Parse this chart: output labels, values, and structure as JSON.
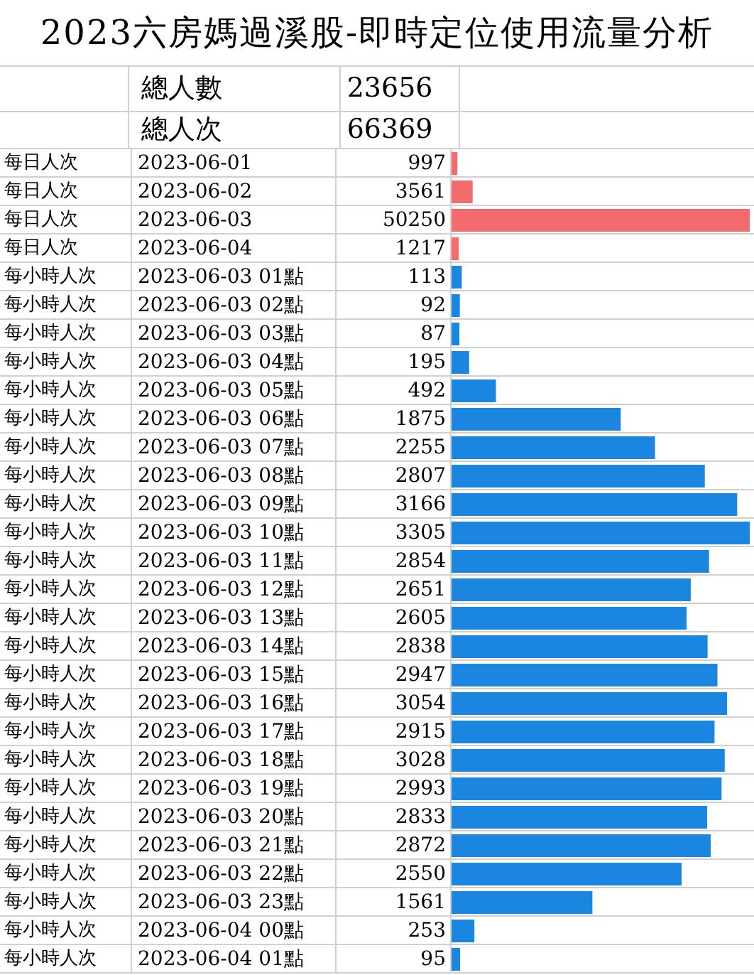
{
  "chart_data": [
    {
      "type": "bar",
      "orientation": "horizontal",
      "title": "2023六房媽過溪股-即時定位使用流量分析",
      "annotations": [
        "總人數",
        "23656",
        "總人次",
        "66369"
      ],
      "ylabel": "每日人次",
      "data_labels": true,
      "grid": true,
      "categories": [
        "2023-06-01",
        "2023-06-02",
        "2023-06-03",
        "2023-06-04"
      ],
      "series": [
        {
          "color": "#f26b6d",
          "values": [
            997,
            3561,
            50250,
            1217
          ]
        }
      ]
    },
    {
      "type": "bar",
      "orientation": "horizontal",
      "ylabel": "每小時人次",
      "data_labels": true,
      "grid": true,
      "categories": [
        "2023-06-03 01點",
        "2023-06-03 02點",
        "2023-06-03 03點",
        "2023-06-03 04點",
        "2023-06-03 05點",
        "2023-06-03 06點",
        "2023-06-03 07點",
        "2023-06-03 08點",
        "2023-06-03 09點",
        "2023-06-03 10點",
        "2023-06-03 11點",
        "2023-06-03 12點",
        "2023-06-03 13點",
        "2023-06-03 14點",
        "2023-06-03 15點",
        "2023-06-03 16點",
        "2023-06-03 17點",
        "2023-06-03 18點",
        "2023-06-03 19點",
        "2023-06-03 20點",
        "2023-06-03 21點",
        "2023-06-03 22點",
        "2023-06-03 23點",
        "2023-06-04 00點",
        "2023-06-04 01點"
      ],
      "series": [
        {
          "color": "#1a86e0",
          "values": [
            113,
            92,
            87,
            195,
            492,
            1875,
            2255,
            2807,
            3166,
            3305,
            2854,
            2651,
            2605,
            2838,
            2947,
            3054,
            2915,
            3028,
            2993,
            2833,
            2872,
            2550,
            1561,
            253,
            95
          ]
        }
      ]
    }
  ]
}
